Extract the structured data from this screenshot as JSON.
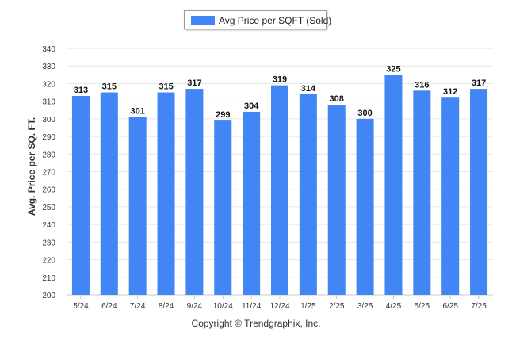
{
  "legend": {
    "label": "Avg Price per SQFT (Sold)"
  },
  "footer": {
    "copyright": "Copyright © Trendgraphix, Inc."
  },
  "colors": {
    "bar": "#4285f4",
    "grid": "#e6e6e6",
    "axis": "#c8c8c8",
    "text": "#333333"
  },
  "chart_data": {
    "type": "bar",
    "categories": [
      "5/24",
      "6/24",
      "7/24",
      "8/24",
      "9/24",
      "10/24",
      "11/24",
      "12/24",
      "1/25",
      "2/25",
      "3/25",
      "4/25",
      "5/25",
      "6/25",
      "7/25"
    ],
    "series": [
      {
        "name": "Avg Price per SQFT (Sold)",
        "values": [
          313,
          315,
          301,
          315,
          317,
          299,
          304,
          319,
          314,
          308,
          300,
          325,
          316,
          312,
          317
        ]
      }
    ],
    "ylabel": "Avg. Price per SQ. FT.",
    "ylim": [
      200,
      340
    ],
    "yticks": [
      200,
      210,
      220,
      230,
      240,
      250,
      260,
      270,
      280,
      290,
      300,
      310,
      320,
      330,
      340
    ],
    "grid": true,
    "legend_position": "top-center"
  }
}
